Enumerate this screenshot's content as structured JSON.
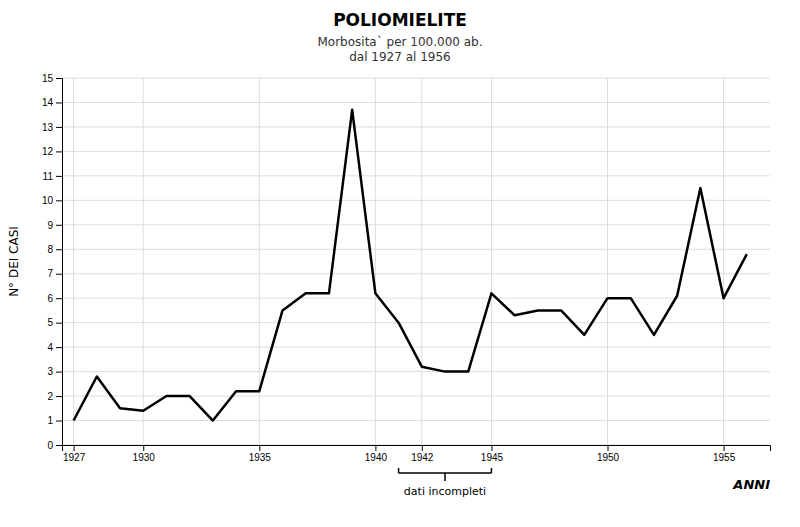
{
  "chart_data": {
    "type": "line",
    "title": "POLIOMIELITE",
    "subtitle": "Morbosita` per 100.000 ab.\ndal 1927 al 1956",
    "ylabel": "N° DEI CASI",
    "xlabel": "ANNI",
    "x": [
      1927,
      1928,
      1929,
      1930,
      1931,
      1932,
      1933,
      1934,
      1935,
      1936,
      1937,
      1938,
      1939,
      1940,
      1941,
      1942,
      1943,
      1944,
      1945,
      1946,
      1947,
      1948,
      1949,
      1950,
      1951,
      1952,
      1953,
      1954,
      1955,
      1956
    ],
    "values": [
      1.0,
      2.8,
      1.5,
      1.4,
      2.0,
      2.0,
      1.0,
      2.2,
      2.2,
      5.5,
      6.2,
      6.2,
      13.7,
      6.2,
      5.0,
      3.2,
      3.0,
      3.0,
      6.2,
      5.3,
      5.5,
      5.5,
      4.5,
      6.0,
      6.0,
      4.5,
      6.1,
      10.5,
      6.0,
      7.8
    ],
    "color": "#000000",
    "xlim": [
      1926.5,
      1957
    ],
    "xticks": [
      1927,
      1930,
      1935,
      1940,
      1942,
      1945,
      1950,
      1955
    ],
    "ylim": [
      0,
      15
    ],
    "yticks": [
      0,
      1,
      2,
      3,
      4,
      5,
      6,
      7,
      8,
      9,
      10,
      11,
      12,
      13,
      14,
      15
    ],
    "grid": true,
    "annotations": [
      {
        "text": "dati incompleti",
        "xstart": 1941,
        "xend": 1945
      }
    ]
  }
}
